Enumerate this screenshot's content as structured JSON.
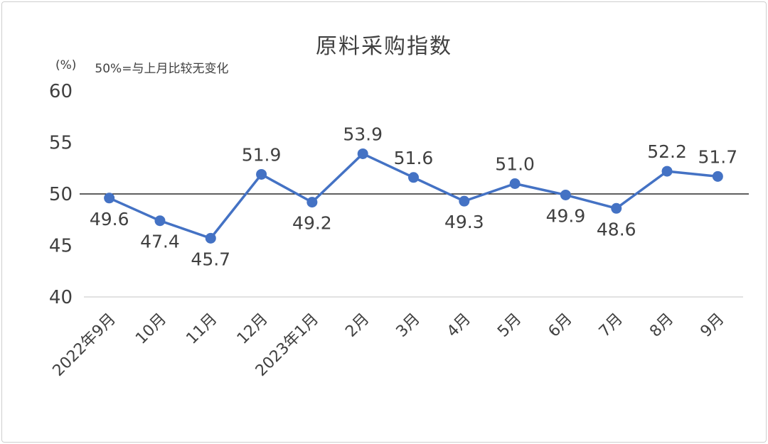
{
  "title": "原料采购指数",
  "unit_label": "(%)",
  "note": "50%=与上月比较无变化",
  "chart_data": {
    "type": "line",
    "title": "原料采购指数",
    "categories": [
      "2022年9月",
      "10月",
      "11月",
      "12月",
      "2023年1月",
      "2月",
      "3月",
      "4月",
      "5月",
      "6月",
      "7月",
      "8月",
      "9月"
    ],
    "values": [
      49.6,
      47.4,
      45.7,
      51.9,
      49.2,
      53.9,
      51.6,
      49.3,
      51.0,
      49.9,
      48.6,
      52.2,
      51.7
    ],
    "series_name": "原料采购指数",
    "ylabel": "(%)",
    "ylim": [
      40,
      60
    ],
    "yticks": [
      40,
      45,
      50,
      55,
      60
    ],
    "reference_line": 50,
    "annotation": "50%=与上月比较无变化",
    "line_color": "#4472C4",
    "label_color": "#404040",
    "axis_line_color": "#d9d9d9",
    "reference_line_color": "#000000",
    "grid": false,
    "legend": false
  }
}
